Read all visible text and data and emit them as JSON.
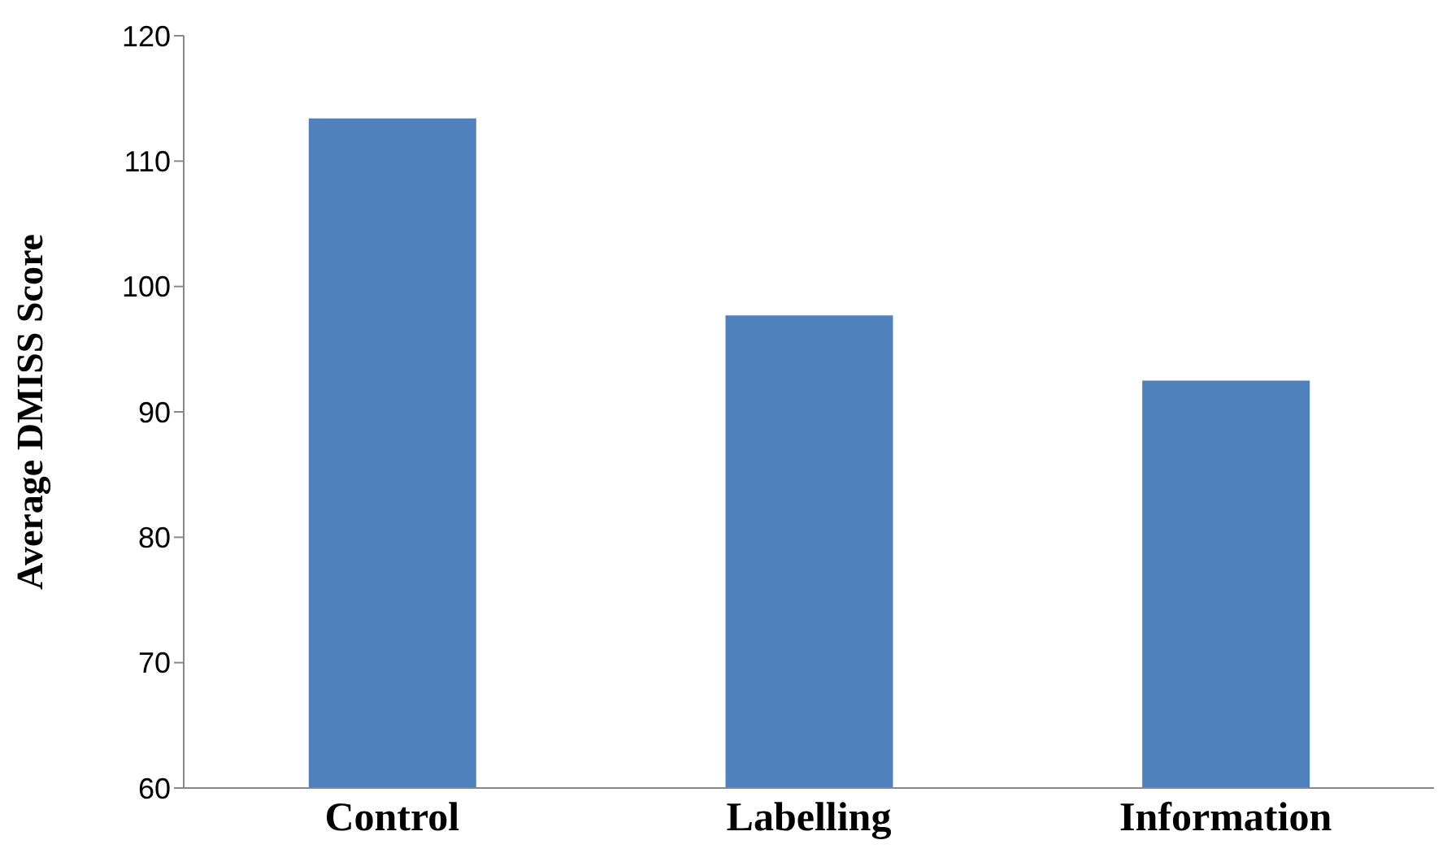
{
  "chart_data": {
    "type": "bar",
    "ylabel": "Average DMISS Score",
    "categories": [
      "Control",
      "Labelling",
      "Information"
    ],
    "values": [
      113.4,
      97.7,
      92.5
    ],
    "color": "#4f81bd",
    "ylim": [
      60,
      120
    ],
    "yticks": [
      60,
      70,
      80,
      90,
      100,
      110,
      120
    ],
    "grid": false,
    "legend": false
  }
}
